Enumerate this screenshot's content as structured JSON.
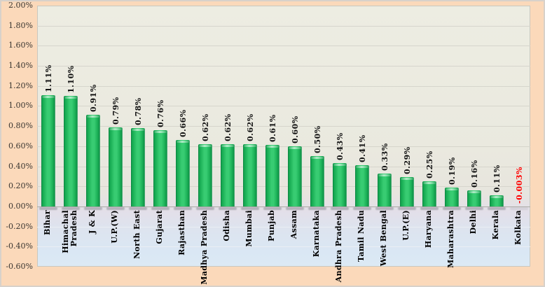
{
  "frame": {
    "background_color": "#FBD9BA",
    "border_color": "#D8D1CA",
    "plot_background_top": "#EDEDE2",
    "plot_background_bottom": "#DCEAF5"
  },
  "chart_data": {
    "type": "bar",
    "title": "",
    "xlabel": "",
    "ylabel": "",
    "categories": [
      "Bihar",
      "Himachal Pradesh",
      "J & K",
      "U.P.(W)",
      "North East",
      "Gujarat",
      "Rajasthan",
      "Madhya Pradesh",
      "Odisha",
      "Mumbai",
      "Punjab",
      "Assam",
      "Karnataka",
      "Andhra Pradesh",
      "Tamil Nadu",
      "West Bengal",
      "U.P.(E)",
      "Haryana",
      "Maharashtra",
      "Delhi",
      "Kerala",
      "Kolkata"
    ],
    "category_label_lines": [
      [
        "Bihar"
      ],
      [
        "Himachal",
        "Pradesh"
      ],
      [
        "J & K"
      ],
      [
        "U.P.(W)"
      ],
      [
        "North East"
      ],
      [
        "Gujarat"
      ],
      [
        "Rajasthan"
      ],
      [
        "Madhya Pradesh"
      ],
      [
        "Odisha"
      ],
      [
        "Mumbai"
      ],
      [
        "Punjab"
      ],
      [
        "Assam"
      ],
      [
        "Karnataka"
      ],
      [
        "Andhra Pradesh"
      ],
      [
        "Tamil Nadu"
      ],
      [
        "West Bengal"
      ],
      [
        "U.P.(E)"
      ],
      [
        "Haryana"
      ],
      [
        "Maharashtra"
      ],
      [
        "Delhi"
      ],
      [
        "Kerala"
      ],
      [
        "Kolkata"
      ]
    ],
    "values": [
      1.11,
      1.1,
      0.91,
      0.79,
      0.78,
      0.76,
      0.66,
      0.62,
      0.62,
      0.62,
      0.61,
      0.6,
      0.5,
      0.43,
      0.41,
      0.33,
      0.29,
      0.25,
      0.19,
      0.16,
      0.11,
      -0.003
    ],
    "value_labels": [
      "1.11%",
      "1.10%",
      "0.91%",
      "0.79%",
      "0.78%",
      "0.76%",
      "0.66%",
      "0.62%",
      "0.62%",
      "0.62%",
      "0.61%",
      "0.60%",
      "0.50%",
      "0.43%",
      "0.41%",
      "0.33%",
      "0.29%",
      "0.25%",
      "0.19%",
      "0.16%",
      "0.11%",
      "-0.003%"
    ],
    "ylim": [
      -0.6,
      2.0
    ],
    "ytick_step": 0.2,
    "ytick_labels": [
      "2.00%",
      "1.80%",
      "1.60%",
      "1.40%",
      "1.20%",
      "1.00%",
      "0.80%",
      "0.60%",
      "0.40%",
      "0.20%",
      "0.00%",
      "-0.20%",
      "-0.40%",
      "-0.60%"
    ],
    "grid": true,
    "legend": false,
    "bar_color": "#1DB258",
    "bar_highlight_color": "#38CC72",
    "bar_edge_color": "#0A8740",
    "value_label_color": "#141414",
    "negative_value_label_color": "#FF0000",
    "axis_tick_color": "#3A3631",
    "category_label_color": "#000000",
    "gridline_color": "#D6D5CC",
    "zero_axis_color": "#ABABA5"
  }
}
